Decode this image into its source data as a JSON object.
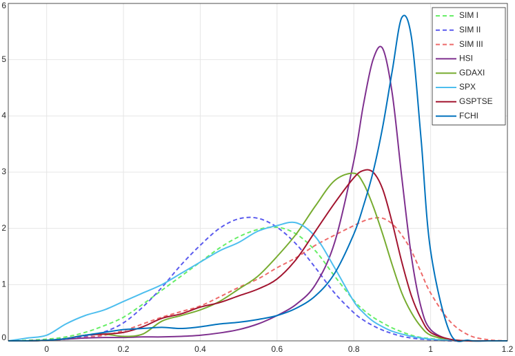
{
  "chart_data": {
    "type": "line",
    "legend": "upper right",
    "grid": true,
    "xlim": [
      -0.1,
      1.2
    ],
    "xticks": [
      0,
      0.2,
      0.4,
      0.6,
      0.8,
      1,
      1.2
    ],
    "ylim": [
      0,
      6
    ],
    "yticks": [
      0,
      1,
      2,
      3,
      4,
      5,
      6
    ],
    "x": [
      -0.1,
      -0.05,
      0,
      0.05,
      0.1,
      0.15,
      0.2,
      0.25,
      0.3,
      0.35,
      0.4,
      0.45,
      0.5,
      0.55,
      0.6,
      0.65,
      0.7,
      0.75,
      0.8,
      0.825,
      0.85,
      0.875,
      0.9,
      0.925,
      0.95,
      0.975,
      1.0,
      1.05,
      1.1,
      1.15,
      1.2
    ],
    "series": [
      {
        "name": "SIM I",
        "color": "#66ee66",
        "dashed": true,
        "values": [
          0,
          0.01,
          0.03,
          0.07,
          0.15,
          0.27,
          0.42,
          0.65,
          0.9,
          1.15,
          1.4,
          1.65,
          1.85,
          1.98,
          2.02,
          1.9,
          1.6,
          1.15,
          0.72,
          0.55,
          0.42,
          0.32,
          0.23,
          0.16,
          0.1,
          0.06,
          0.04,
          0.01,
          0,
          0,
          0
        ]
      },
      {
        "name": "SIM II",
        "color": "#5a5aee",
        "dashed": true,
        "values": [
          0,
          0,
          0.01,
          0.03,
          0.08,
          0.16,
          0.32,
          0.6,
          0.95,
          1.35,
          1.7,
          2.0,
          2.17,
          2.18,
          2.02,
          1.72,
          1.3,
          0.85,
          0.5,
          0.37,
          0.27,
          0.19,
          0.13,
          0.08,
          0.05,
          0.03,
          0.02,
          0,
          0,
          0,
          0
        ]
      },
      {
        "name": "SIM III",
        "color": "#ee6a6a",
        "dashed": true,
        "values": [
          0,
          0,
          0.01,
          0.03,
          0.06,
          0.1,
          0.18,
          0.3,
          0.42,
          0.52,
          0.62,
          0.78,
          0.95,
          1.1,
          1.3,
          1.48,
          1.7,
          1.88,
          2.05,
          2.13,
          2.18,
          2.18,
          2.08,
          1.88,
          1.6,
          1.22,
          0.85,
          0.35,
          0.1,
          0.02,
          0
        ]
      },
      {
        "name": "HSI",
        "color": "#7e2f8e",
        "dashed": false,
        "values": [
          0,
          0,
          0.01,
          0.03,
          0.05,
          0.06,
          0.06,
          0.07,
          0.07,
          0.08,
          0.1,
          0.14,
          0.2,
          0.3,
          0.45,
          0.65,
          1.0,
          1.75,
          3.2,
          4.2,
          5.0,
          5.2,
          4.4,
          2.9,
          1.5,
          0.6,
          0.2,
          0.02,
          0,
          0,
          0
        ]
      },
      {
        "name": "GDAXI",
        "color": "#77ac30",
        "dashed": false,
        "values": [
          0,
          0,
          0.01,
          0.04,
          0.1,
          0.12,
          0.08,
          0.12,
          0.35,
          0.45,
          0.55,
          0.7,
          0.92,
          1.15,
          1.5,
          1.9,
          2.4,
          2.85,
          2.98,
          2.8,
          2.4,
          1.9,
          1.35,
          0.85,
          0.5,
          0.25,
          0.1,
          0.02,
          0,
          0,
          0
        ]
      },
      {
        "name": "SPX",
        "color": "#4dbeee",
        "dashed": false,
        "values": [
          0,
          0.05,
          0.1,
          0.3,
          0.45,
          0.55,
          0.7,
          0.85,
          1.0,
          1.2,
          1.4,
          1.6,
          1.75,
          1.95,
          2.05,
          2.1,
          1.85,
          1.3,
          0.7,
          0.5,
          0.35,
          0.25,
          0.17,
          0.12,
          0.08,
          0.05,
          0.03,
          0.01,
          0,
          0,
          0
        ]
      },
      {
        "name": "GSPTSE",
        "color": "#a2142f",
        "dashed": false,
        "values": [
          0,
          0,
          0.01,
          0.04,
          0.1,
          0.12,
          0.15,
          0.25,
          0.4,
          0.48,
          0.6,
          0.68,
          0.8,
          0.92,
          1.1,
          1.45,
          1.95,
          2.45,
          2.9,
          3.03,
          3.0,
          2.7,
          2.1,
          1.4,
          0.8,
          0.4,
          0.15,
          0.03,
          0,
          0,
          0
        ]
      },
      {
        "name": "FCHI",
        "color": "#0072bd",
        "dashed": false,
        "values": [
          0,
          0,
          0.01,
          0.04,
          0.1,
          0.15,
          0.2,
          0.22,
          0.24,
          0.22,
          0.25,
          0.3,
          0.33,
          0.38,
          0.45,
          0.58,
          0.8,
          1.2,
          1.9,
          2.4,
          3.0,
          3.8,
          4.8,
          5.75,
          5.4,
          3.6,
          1.6,
          0.15,
          0.01,
          0,
          0
        ]
      }
    ]
  }
}
